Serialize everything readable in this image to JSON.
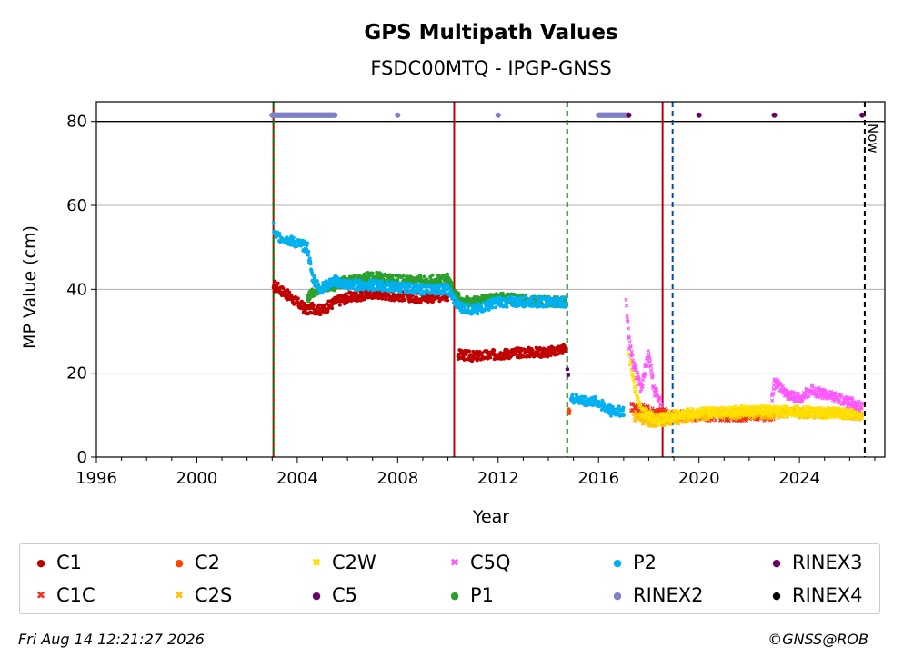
{
  "chart_data": {
    "type": "scatter",
    "title": "GPS Multipath Values",
    "subtitle": "FSDC00MTQ - IPGP-GNSS",
    "xlabel": "Year",
    "ylabel": "MP Value (cm)",
    "xlim": [
      1996,
      2027.4
    ],
    "ylim": [
      0,
      80
    ],
    "x_ticks": [
      "1996",
      "2000",
      "2004",
      "2008",
      "2012",
      "2016",
      "2020",
      "2024"
    ],
    "y_ticks": [
      "0",
      "20",
      "40",
      "60",
      "80"
    ],
    "grid": "y-major",
    "now_label": "Now",
    "series": [
      {
        "name": "C1",
        "color": "#c00000",
        "marker": "dot",
        "points": [
          [
            2003.05,
            39.5
          ],
          [
            2003.1,
            41
          ],
          [
            2004.4,
            35
          ],
          [
            2004.6,
            35.5
          ],
          [
            2005.0,
            35
          ],
          [
            2005.5,
            37
          ],
          [
            2006.0,
            38
          ],
          [
            2007.0,
            39
          ],
          [
            2008.0,
            38.5
          ],
          [
            2009.0,
            38
          ],
          [
            2010.0,
            38.5
          ],
          [
            2010.4,
            24.5
          ],
          [
            2011.0,
            24
          ],
          [
            2012.0,
            24.5
          ],
          [
            2013.0,
            25
          ],
          [
            2014.0,
            25
          ],
          [
            2014.7,
            26
          ]
        ]
      },
      {
        "name": "C1C",
        "color": "#ee3020",
        "marker": "x",
        "points": [
          [
            2017.3,
            12
          ],
          [
            2018.0,
            11
          ],
          [
            2019.0,
            10
          ],
          [
            2020.0,
            9.8
          ],
          [
            2021.0,
            9.7
          ],
          [
            2022.0,
            9.8
          ],
          [
            2023.0,
            10
          ]
        ]
      },
      {
        "name": "C2",
        "color": "#ff4500",
        "marker": "dot",
        "points": [
          [
            2014.8,
            11
          ],
          [
            2014.85,
            10.5
          ]
        ]
      },
      {
        "name": "C2S",
        "color": "#ffc000",
        "marker": "x",
        "points": [
          [
            2017.4,
            10
          ],
          [
            2018.0,
            8.5
          ],
          [
            2019.0,
            9
          ],
          [
            2020.0,
            10
          ],
          [
            2021.0,
            10.5
          ],
          [
            2022.0,
            10.5
          ],
          [
            2023.0,
            10.5
          ],
          [
            2024.0,
            10.5
          ],
          [
            2025.0,
            10.5
          ],
          [
            2026.0,
            10.3
          ],
          [
            2026.5,
            10
          ]
        ]
      },
      {
        "name": "C2W",
        "color": "#ffe000",
        "marker": "x",
        "points": [
          [
            2017.2,
            25
          ],
          [
            2017.4,
            18
          ],
          [
            2017.7,
            11
          ],
          [
            2018.3,
            9
          ],
          [
            2019.0,
            10
          ],
          [
            2020.0,
            10.5
          ],
          [
            2021.0,
            11
          ],
          [
            2022.0,
            11
          ],
          [
            2023.0,
            11
          ],
          [
            2024.0,
            11
          ],
          [
            2025.0,
            10.5
          ],
          [
            2026.0,
            10.5
          ],
          [
            2026.5,
            10.5
          ]
        ]
      },
      {
        "name": "C5",
        "color": "#6a0066",
        "marker": "dot",
        "points": [
          [
            2014.75,
            22
          ],
          [
            2014.8,
            19
          ]
        ]
      },
      {
        "name": "C5Q",
        "color": "#ff55ff",
        "marker": "x",
        "points": [
          [
            2017.1,
            38
          ],
          [
            2017.2,
            28
          ],
          [
            2017.4,
            22
          ],
          [
            2017.7,
            16
          ],
          [
            2018.0,
            25
          ],
          [
            2018.2,
            16
          ],
          [
            2018.5,
            13
          ],
          [
            2022.9,
            14
          ],
          [
            2023.0,
            18
          ],
          [
            2023.5,
            15
          ],
          [
            2024.0,
            14
          ],
          [
            2024.5,
            16
          ],
          [
            2025.0,
            15
          ],
          [
            2025.5,
            14
          ],
          [
            2026.0,
            13
          ],
          [
            2026.5,
            12
          ]
        ]
      },
      {
        "name": "P1",
        "color": "#2ca02c",
        "marker": "dot",
        "points": [
          [
            2004.4,
            38
          ],
          [
            2004.8,
            40
          ],
          [
            2005.5,
            41
          ],
          [
            2006.0,
            42
          ],
          [
            2007.0,
            43
          ],
          [
            2008.0,
            42
          ],
          [
            2009.0,
            42
          ],
          [
            2010.0,
            42.5
          ],
          [
            2010.5,
            37
          ],
          [
            2011.0,
            37
          ],
          [
            2012.0,
            38
          ],
          [
            2013.0,
            37.5
          ],
          [
            2014.0,
            37
          ],
          [
            2014.7,
            37
          ]
        ]
      },
      {
        "name": "P2",
        "color": "#00b0f0",
        "marker": "dot",
        "points": [
          [
            2003.05,
            55
          ],
          [
            2003.1,
            53
          ],
          [
            2004.4,
            50
          ],
          [
            2004.6,
            43
          ],
          [
            2004.9,
            40
          ],
          [
            2005.5,
            42
          ],
          [
            2006.0,
            41
          ],
          [
            2007.0,
            41
          ],
          [
            2008.0,
            40.5
          ],
          [
            2009.0,
            40
          ],
          [
            2010.0,
            40
          ],
          [
            2010.4,
            36
          ],
          [
            2011.0,
            35
          ],
          [
            2012.0,
            37
          ],
          [
            2013.0,
            37
          ],
          [
            2014.0,
            37
          ],
          [
            2014.7,
            37
          ],
          [
            2014.9,
            14
          ],
          [
            2015.5,
            13.5
          ],
          [
            2016.0,
            13
          ],
          [
            2016.5,
            11
          ],
          [
            2017.0,
            11
          ]
        ]
      },
      {
        "name": "RINEX2",
        "color": "#8080c8",
        "marker": "dot",
        "points": [
          [
            2003.0,
            81.5
          ],
          [
            2004.5,
            81.5
          ],
          [
            2005.5,
            81.5
          ],
          [
            2008.0,
            81.5
          ],
          [
            2012.0,
            81.5
          ],
          [
            2016.0,
            81.5
          ],
          [
            2017.2,
            81.5
          ]
        ]
      },
      {
        "name": "RINEX3",
        "color": "#6a0066",
        "marker": "dot",
        "points": [
          [
            2017.2,
            81.5
          ],
          [
            2020.0,
            81.5
          ],
          [
            2023.0,
            81.5
          ],
          [
            2026.5,
            81.5
          ]
        ]
      },
      {
        "name": "RINEX4",
        "color": "#000000",
        "marker": "dot",
        "points": []
      }
    ],
    "vlines": [
      {
        "x": 2003.05,
        "color": "#c00000",
        "style": "solid"
      },
      {
        "x": 2003.05,
        "color": "#008000",
        "style": "dashed"
      },
      {
        "x": 2010.25,
        "color": "#c00000",
        "style": "solid"
      },
      {
        "x": 2014.75,
        "color": "#008000",
        "style": "dashed"
      },
      {
        "x": 2018.55,
        "color": "#c00000",
        "style": "solid"
      },
      {
        "x": 2018.95,
        "color": "#0050a0",
        "style": "dashed"
      },
      {
        "x": 2026.6,
        "color": "#000000",
        "style": "dashed"
      }
    ],
    "hline": {
      "y": 80,
      "color": "#000000"
    },
    "legend_placement": "bottom"
  },
  "legend": [
    {
      "label": "C1",
      "color": "#c00000",
      "symbol": "●"
    },
    {
      "label": "C1C",
      "color": "#ee3020",
      "symbol": "✖"
    },
    {
      "label": "C2",
      "color": "#ff4500",
      "symbol": "●"
    },
    {
      "label": "C2S",
      "color": "#ffc000",
      "symbol": "✖"
    },
    {
      "label": "C2W",
      "color": "#ffe000",
      "symbol": "✖"
    },
    {
      "label": "C5",
      "color": "#6a0066",
      "symbol": "●"
    },
    {
      "label": "C5Q",
      "color": "#ff55ff",
      "symbol": "✖"
    },
    {
      "label": "P1",
      "color": "#2ca02c",
      "symbol": "●"
    },
    {
      "label": "P2",
      "color": "#00b0f0",
      "symbol": "●"
    },
    {
      "label": "RINEX2",
      "color": "#8080c8",
      "symbol": "●"
    },
    {
      "label": "RINEX3",
      "color": "#6a0066",
      "symbol": "●"
    },
    {
      "label": "RINEX4",
      "color": "#000000",
      "symbol": "●"
    }
  ],
  "footer": {
    "timestamp": "Fri Aug 14 12:21:27 2026",
    "credit": "©GNSS@ROB"
  }
}
